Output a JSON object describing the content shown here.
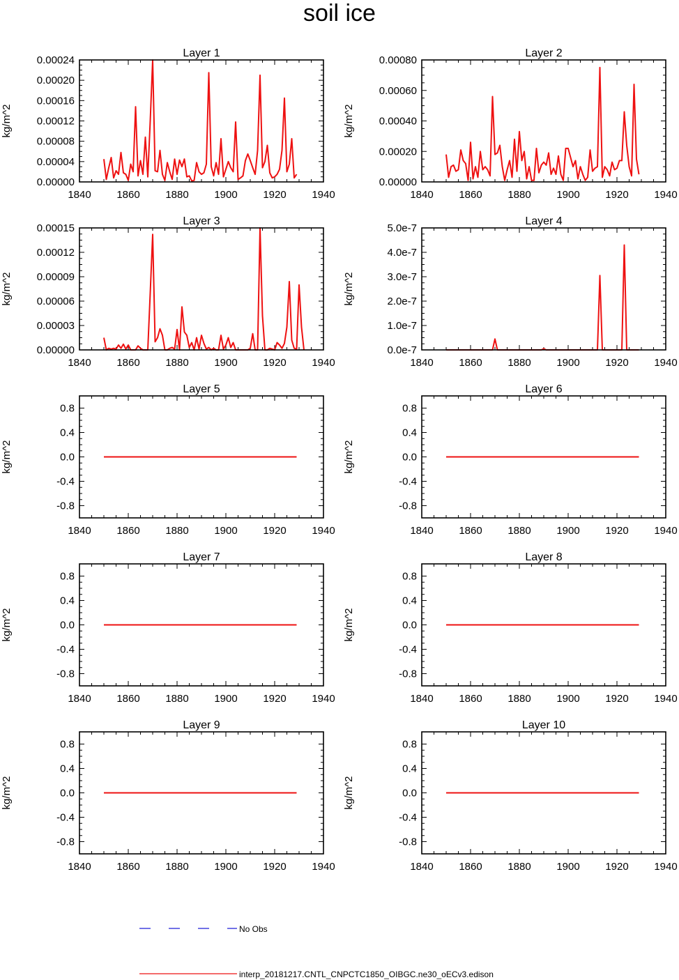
{
  "figure": {
    "title": "soil ice"
  },
  "legend": {
    "entries": [
      {
        "label": "No Obs",
        "color": "#1f1fd6",
        "style": "dashed"
      },
      {
        "label": "interp_20181217.CNTL_CNPCTC1850_OIBGC.ne30_oECv3.edison",
        "color": "#ee1111",
        "style": "solid"
      }
    ]
  },
  "colors": {
    "series": "#ee1111",
    "axis": "#000000"
  },
  "chart_data": [
    {
      "type": "line",
      "title": "Layer 1",
      "ylabel": "kg/m^2",
      "xlim": [
        1840,
        1940
      ],
      "xticks": [
        1840,
        1860,
        1880,
        1900,
        1920,
        1940
      ],
      "ylim": [
        0,
        0.00024
      ],
      "yticks": [
        0,
        4e-05,
        8e-05,
        0.00012,
        0.00016,
        0.0002,
        0.00024
      ],
      "ytick_labels": [
        "0.00000",
        "0.00004",
        "0.00008",
        "0.00012",
        "0.00016",
        "0.00020",
        "0.00024"
      ],
      "x_start": 1850,
      "values": [
        4.5e-05,
        5e-06,
        2.8e-05,
        4.8e-05,
        8e-06,
        2.2e-05,
        1.5e-05,
        5.8e-05,
        1.8e-05,
        1.5e-05,
        3e-06,
        3.5e-05,
        2e-05,
        0.000148,
        1.2e-05,
        4.2e-05,
        1.5e-05,
        8.8e-05,
        1e-05,
        0.00012,
        0.00024,
        2.2e-05,
        2e-05,
        6.2e-05,
        1.5e-05,
        3e-06,
        3.8e-05,
        2e-05,
        5e-06,
        4.5e-05,
        1.5e-05,
        4.3e-05,
        3e-05,
        4.5e-05,
        1e-05,
        1.2e-05,
        2e-06,
        3e-06,
        3.8e-05,
        2e-05,
        1.5e-05,
        1.8e-05,
        3.5e-05,
        0.000215,
        3e-05,
        1.2e-05,
        3.8e-05,
        1.5e-05,
        8.5e-05,
        1e-05,
        2.5e-05,
        4e-05,
        2.8e-05,
        2e-05,
        0.000118,
        5e-06,
        8e-06,
        1.2e-05,
        4.2e-05,
        5.5e-05,
        4.2e-05,
        2.8e-05,
        1.5e-05,
        6.2e-05,
        0.00021,
        2.8e-05,
        4e-05,
        7.2e-05,
        1.8e-05,
        8e-06,
        1e-05,
        1.5e-05,
        2.5e-05,
        6.2e-05,
        0.000165,
        2e-05,
        3.5e-05,
        8.5e-05,
        8e-06,
        1.5e-05
      ]
    },
    {
      "type": "line",
      "title": "Layer 2",
      "ylabel": "kg/m^2",
      "xlim": [
        1840,
        1940
      ],
      "xticks": [
        1840,
        1860,
        1880,
        1900,
        1920,
        1940
      ],
      "ylim": [
        0,
        0.0008
      ],
      "yticks": [
        0,
        0.0002,
        0.0004,
        0.0006,
        0.0008
      ],
      "ytick_labels": [
        "0.00000",
        "0.00020",
        "0.00040",
        "0.00060",
        "0.00080"
      ],
      "x_start": 1850,
      "values": [
        0.00018,
        3e-05,
        0.0001,
        0.00011,
        7e-05,
        8e-05,
        0.00021,
        0.00014,
        0.00012,
        1e-05,
        0.00026,
        2e-05,
        0.0001,
        3e-05,
        0.0002,
        8e-05,
        0.0001,
        8e-05,
        4e-05,
        0.00056,
        0.00018,
        0.00019,
        0.00024,
        0.0001,
        1e-05,
        8e-05,
        0.00014,
        3e-05,
        0.00028,
        7e-05,
        0.00033,
        0.00014,
        0.0002,
        2e-05,
        0.0001,
        1e-05,
        1e-05,
        0.00022,
        6e-05,
        0.00011,
        0.00013,
        0.00011,
        0.00019,
        5e-05,
        9e-05,
        5e-05,
        0.00017,
        5e-05,
        1e-05,
        0.00022,
        0.00022,
        0.00016,
        0.0001,
        0.00014,
        2e-05,
        0.0001,
        5e-05,
        1e-05,
        3e-05,
        0.00021,
        7e-05,
        9e-05,
        0.0001,
        0.00075,
        3e-05,
        0.0001,
        8e-05,
        4e-05,
        0.00013,
        8e-05,
        9e-05,
        0.00014,
        0.00014,
        0.00046,
        0.00024,
        0.0001,
        4e-05,
        0.00064,
        0.00015,
        5e-05
      ]
    },
    {
      "type": "line",
      "title": "Layer 3",
      "ylabel": "kg/m^2",
      "xlim": [
        1840,
        1940
      ],
      "xticks": [
        1840,
        1860,
        1880,
        1900,
        1920,
        1940
      ],
      "ylim": [
        0,
        0.00015
      ],
      "yticks": [
        0,
        3e-05,
        6e-05,
        9e-05,
        0.00012,
        0.00015
      ],
      "ytick_labels": [
        "0.00000",
        "0.00003",
        "0.00006",
        "0.00009",
        "0.00012",
        "0.00015"
      ],
      "x_start": 1850,
      "values": [
        1.5e-05,
        0,
        2e-06,
        1e-06,
        2e-06,
        1e-06,
        6e-06,
        2e-06,
        7e-06,
        1e-06,
        6e-06,
        0,
        0,
        0,
        5e-06,
        2e-06,
        0,
        0,
        0,
        7e-05,
        0.000142,
        1e-05,
        1.5e-05,
        2.6e-05,
        1.8e-05,
        0,
        0,
        2e-06,
        3e-06,
        1e-06,
        2.5e-05,
        0,
        5.3e-05,
        2.2e-05,
        1.8e-05,
        3e-06,
        9e-06,
        0,
        1.5e-05,
        1e-06,
        1.8e-05,
        8e-06,
        1e-06,
        3e-06,
        0,
        2e-06,
        0,
        0,
        1.8e-05,
        1e-06,
        6e-06,
        1.5e-05,
        3e-06,
        9e-06,
        0,
        0,
        0,
        0,
        0,
        0,
        2e-06,
        2e-05,
        0,
        0,
        0.00015,
        4.2e-05,
        0,
        0,
        2e-06,
        1e-06,
        0,
        9e-06,
        6e-06,
        2e-06,
        8e-06,
        2.8e-05,
        8.4e-05,
        1.2e-05,
        2e-06,
        1e-06,
        8e-05,
        2.8e-05,
        0
      ]
    },
    {
      "type": "line",
      "title": "Layer 4",
      "ylabel": "kg/m^2",
      "xlim": [
        1840,
        1940
      ],
      "xticks": [
        1840,
        1860,
        1880,
        1900,
        1920,
        1940
      ],
      "ylim": [
        0,
        5e-07
      ],
      "yticks": [
        0,
        1e-07,
        2e-07,
        3e-07,
        4e-07,
        5e-07
      ],
      "ytick_labels": [
        "0.0e-7",
        "1.0e-7",
        "2.0e-7",
        "3.0e-7",
        "4.0e-7",
        "5.0e-7"
      ],
      "x_start": 1850,
      "values": [
        0,
        0,
        0,
        0,
        0,
        0,
        0,
        0,
        0,
        0,
        0,
        0,
        0,
        0,
        0,
        0,
        0,
        0,
        0,
        0,
        4.5e-08,
        0,
        0,
        0,
        0,
        0,
        0,
        0,
        0,
        0,
        0,
        0,
        0,
        0,
        0,
        0,
        0,
        0,
        0,
        0,
        5e-09,
        0,
        0,
        0,
        0,
        0,
        0,
        0,
        0,
        0,
        0,
        0,
        0,
        0,
        0,
        0,
        0,
        0,
        0,
        0,
        0,
        0,
        0,
        3.05e-07,
        0,
        0,
        0,
        0,
        0,
        0,
        0,
        0,
        0,
        4.3e-07,
        0,
        0,
        0,
        0,
        0,
        0
      ]
    },
    {
      "type": "line",
      "title": "Layer 5",
      "ylabel": "kg/m^2",
      "xlim": [
        1840,
        1940
      ],
      "xticks": [
        1840,
        1860,
        1880,
        1900,
        1920,
        1940
      ],
      "ylim": [
        -1,
        1
      ],
      "yticks": [
        -0.8,
        -0.4,
        0,
        0.4,
        0.8
      ],
      "ytick_labels": [
        "-0.8",
        "-0.4",
        "0.0",
        "0.4",
        "0.8"
      ],
      "x_start": 1850,
      "x_end": 1929,
      "constant": 0
    },
    {
      "type": "line",
      "title": "Layer 6",
      "ylabel": "kg/m^2",
      "xlim": [
        1840,
        1940
      ],
      "xticks": [
        1840,
        1860,
        1880,
        1900,
        1920,
        1940
      ],
      "ylim": [
        -1,
        1
      ],
      "yticks": [
        -0.8,
        -0.4,
        0,
        0.4,
        0.8
      ],
      "ytick_labels": [
        "-0.8",
        "-0.4",
        "0.0",
        "0.4",
        "0.8"
      ],
      "x_start": 1850,
      "x_end": 1929,
      "constant": 0
    },
    {
      "type": "line",
      "title": "Layer 7",
      "ylabel": "kg/m^2",
      "xlim": [
        1840,
        1940
      ],
      "xticks": [
        1840,
        1860,
        1880,
        1900,
        1920,
        1940
      ],
      "ylim": [
        -1,
        1
      ],
      "yticks": [
        -0.8,
        -0.4,
        0,
        0.4,
        0.8
      ],
      "ytick_labels": [
        "-0.8",
        "-0.4",
        "0.0",
        "0.4",
        "0.8"
      ],
      "x_start": 1850,
      "x_end": 1929,
      "constant": 0
    },
    {
      "type": "line",
      "title": "Layer 8",
      "ylabel": "kg/m^2",
      "xlim": [
        1840,
        1940
      ],
      "xticks": [
        1840,
        1860,
        1880,
        1900,
        1920,
        1940
      ],
      "ylim": [
        -1,
        1
      ],
      "yticks": [
        -0.8,
        -0.4,
        0,
        0.4,
        0.8
      ],
      "ytick_labels": [
        "-0.8",
        "-0.4",
        "0.0",
        "0.4",
        "0.8"
      ],
      "x_start": 1850,
      "x_end": 1929,
      "constant": 0
    },
    {
      "type": "line",
      "title": "Layer 9",
      "ylabel": "kg/m^2",
      "xlim": [
        1840,
        1940
      ],
      "xticks": [
        1840,
        1860,
        1880,
        1900,
        1920,
        1940
      ],
      "ylim": [
        -1,
        1
      ],
      "yticks": [
        -0.8,
        -0.4,
        0,
        0.4,
        0.8
      ],
      "ytick_labels": [
        "-0.8",
        "-0.4",
        "0.0",
        "0.4",
        "0.8"
      ],
      "x_start": 1850,
      "x_end": 1929,
      "constant": 0
    },
    {
      "type": "line",
      "title": "Layer 10",
      "ylabel": "kg/m^2",
      "xlim": [
        1840,
        1940
      ],
      "xticks": [
        1840,
        1860,
        1880,
        1900,
        1920,
        1940
      ],
      "ylim": [
        -1,
        1
      ],
      "yticks": [
        -0.8,
        -0.4,
        0,
        0.4,
        0.8
      ],
      "ytick_labels": [
        "-0.8",
        "-0.4",
        "0.0",
        "0.4",
        "0.8"
      ],
      "x_start": 1850,
      "x_end": 1929,
      "constant": 0
    }
  ]
}
